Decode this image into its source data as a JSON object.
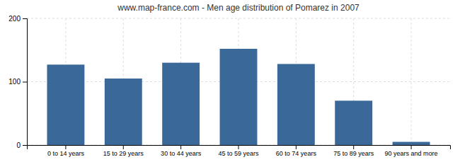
{
  "chart_data": {
    "type": "bar",
    "title": "www.map-france.com - Men age distribution of Pomarez in 2007",
    "categories": [
      "0 to 14 years",
      "15 to 29 years",
      "30 to 44 years",
      "45 to 59 years",
      "60 to 74 years",
      "75 to 89 years",
      "90 years and more"
    ],
    "values": [
      127,
      105,
      130,
      152,
      128,
      70,
      5
    ],
    "color": "#3a6898",
    "ylim": [
      0,
      200
    ],
    "yticks": [
      0,
      100,
      200
    ],
    "grid": true
  }
}
